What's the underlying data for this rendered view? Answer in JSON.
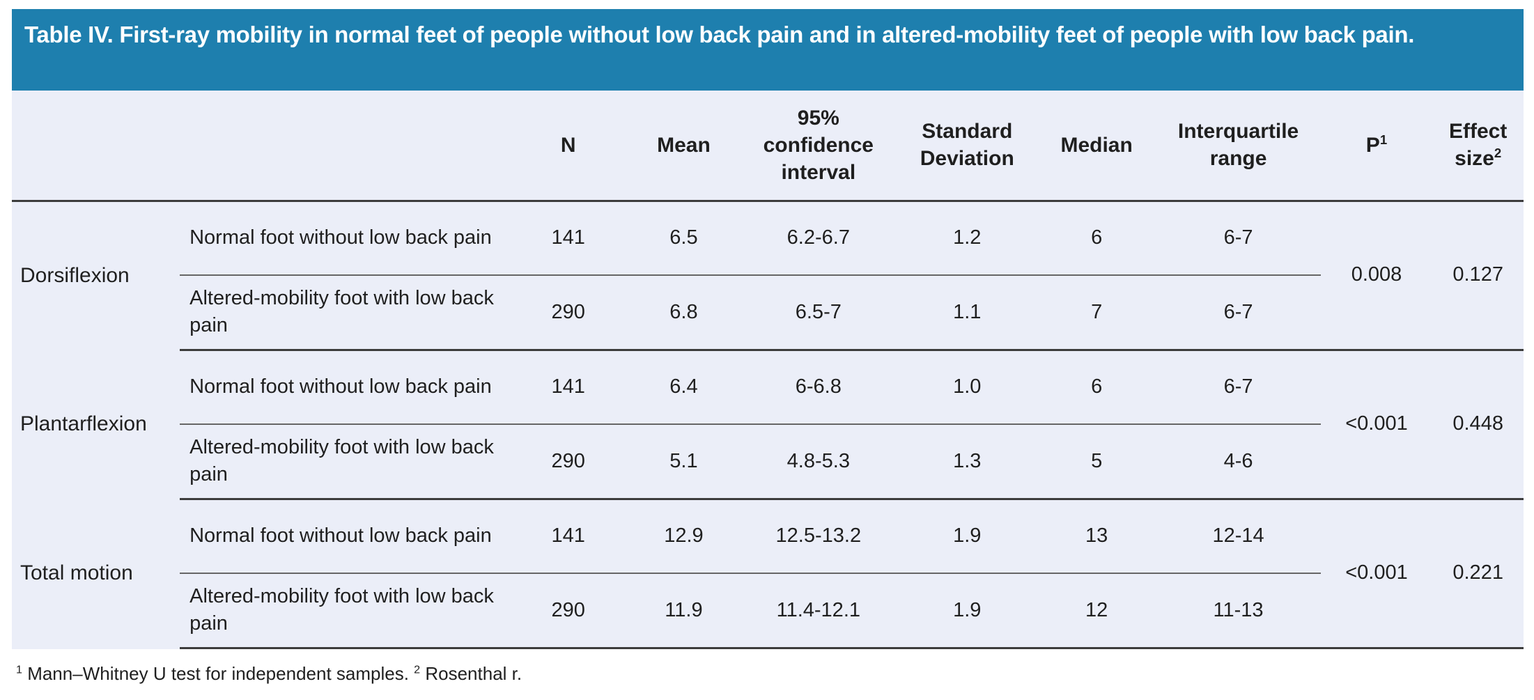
{
  "title": "Table IV. First-ray mobility in normal feet of people without low back pain and in altered-mobility feet of people with low back pain.",
  "colors": {
    "banner_bg": "#1e7fae",
    "banner_text": "#ffffff",
    "table_bg": "#ebeef8",
    "thick_line": "#3c3c3c",
    "thin_line": "#666666",
    "text": "#1f1f1f",
    "page_bg": "#ffffff"
  },
  "columns": {
    "n": "N",
    "mean": "Mean",
    "ci": "95% confidence interval",
    "sd": "Standard Deviation",
    "median": "Median",
    "iqr": "Interquartile range",
    "p_base": "P",
    "p_sup": "1",
    "effect_base": "Effect size",
    "effect_sup": "2"
  },
  "groups": [
    {
      "label": "Dorsiflexion",
      "rows": [
        {
          "label": "Normal foot without low back pain",
          "n": "141",
          "mean": "6.5",
          "ci": "6.2-6.7",
          "sd": "1.2",
          "median": "6",
          "iqr": "6-7"
        },
        {
          "label": "Altered-mobility foot with low back pain",
          "n": "290",
          "mean": "6.8",
          "ci": "6.5-7",
          "sd": "1.1",
          "median": "7",
          "iqr": "6-7"
        }
      ],
      "p": "0.008",
      "effect_size": "0.127"
    },
    {
      "label": "Plantarflexion",
      "rows": [
        {
          "label": "Normal foot without low back pain",
          "n": "141",
          "mean": "6.4",
          "ci": "6-6.8",
          "sd": "1.0",
          "median": "6",
          "iqr": "6-7"
        },
        {
          "label": "Altered-mobility foot with low back pain",
          "n": "290",
          "mean": "5.1",
          "ci": "4.8-5.3",
          "sd": "1.3",
          "median": "5",
          "iqr": "4-6"
        }
      ],
      "p": "<0.001",
      "effect_size": "0.448"
    },
    {
      "label": "Total motion",
      "rows": [
        {
          "label": "Normal foot without low back pain",
          "n": "141",
          "mean": "12.9",
          "ci": "12.5-13.2",
          "sd": "1.9",
          "median": "13",
          "iqr": "12-14"
        },
        {
          "label": "Altered-mobility foot with low back pain",
          "n": "290",
          "mean": "11.9",
          "ci": "11.4-12.1",
          "sd": "1.9",
          "median": "12",
          "iqr": "11-13"
        }
      ],
      "p": "<0.001",
      "effect_size": "0.221"
    }
  ],
  "footnote": {
    "sup1": "1",
    "text1": " Mann–Whitney U test for independent samples. ",
    "sup2": "2",
    "text2": " Rosenthal r."
  }
}
